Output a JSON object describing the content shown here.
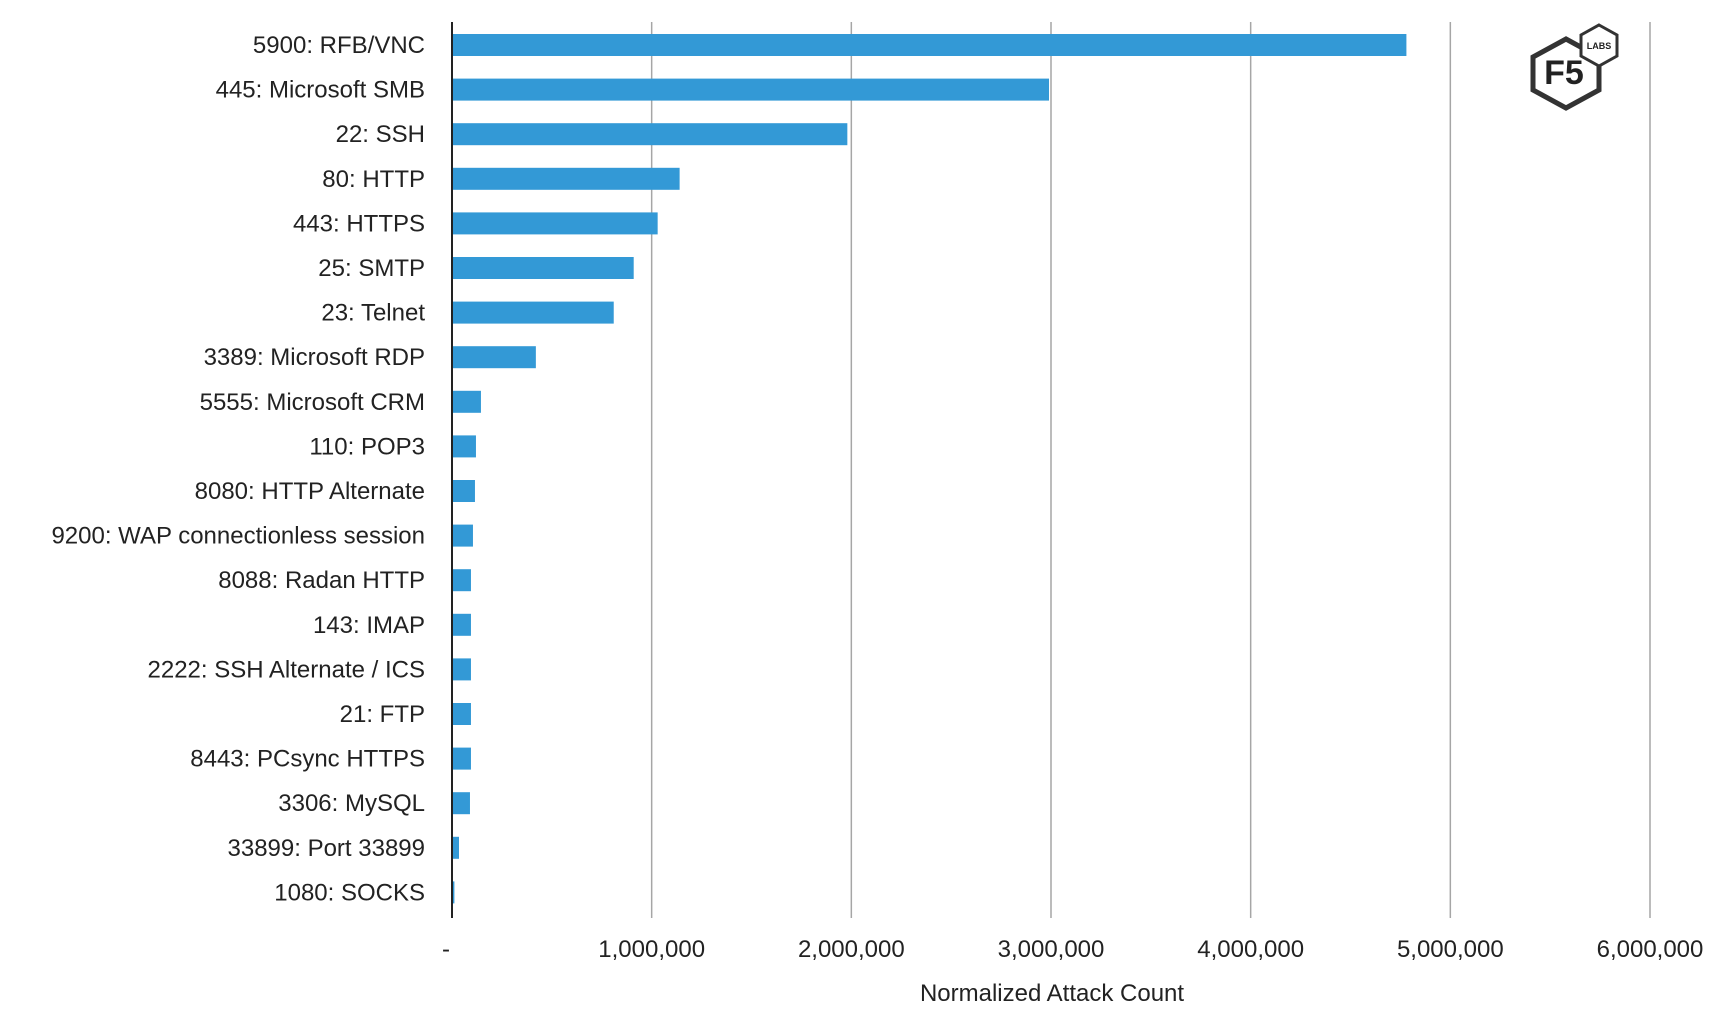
{
  "chart_data": {
    "type": "bar",
    "orientation": "horizontal",
    "title": "",
    "xlabel": "Normalized Attack Count",
    "ylabel": "",
    "xlim": [
      0,
      6000000
    ],
    "grid": true,
    "legend": "none",
    "categories": [
      "5900: RFB/VNC",
      "445: Microsoft SMB",
      "22: SSH",
      "80: HTTP",
      "443: HTTPS",
      "25: SMTP",
      "23: Telnet",
      "3389: Microsoft RDP",
      "5555: Microsoft CRM",
      "110: POP3",
      "8080: HTTP Alternate",
      "9200: WAP connectionless session",
      "8088: Radan HTTP",
      "143: IMAP",
      "2222: SSH Alternate / ICS",
      "21: FTP",
      "8443: PCsync HTTPS",
      "3306: MySQL",
      "33899: Port 33899",
      "1080: SOCKS"
    ],
    "values": [
      4780000,
      2990000,
      1980000,
      1140000,
      1030000,
      910000,
      810000,
      420000,
      145000,
      120000,
      115000,
      105000,
      95000,
      95000,
      95000,
      95000,
      95000,
      90000,
      35000,
      12000
    ],
    "tick_values": [
      0,
      1000000,
      2000000,
      3000000,
      4000000,
      5000000,
      6000000
    ],
    "tick_labels": [
      "-",
      "1,000,000",
      "2,000,000",
      "3,000,000",
      "4,000,000",
      "5,000,000",
      "6,000,000"
    ],
    "bar_color": "#3399d6",
    "grid_color": "#a6a6a6",
    "axis_color": "#222222"
  },
  "logo": {
    "main": "F5",
    "sub": "LABS",
    "color": "#333333"
  }
}
